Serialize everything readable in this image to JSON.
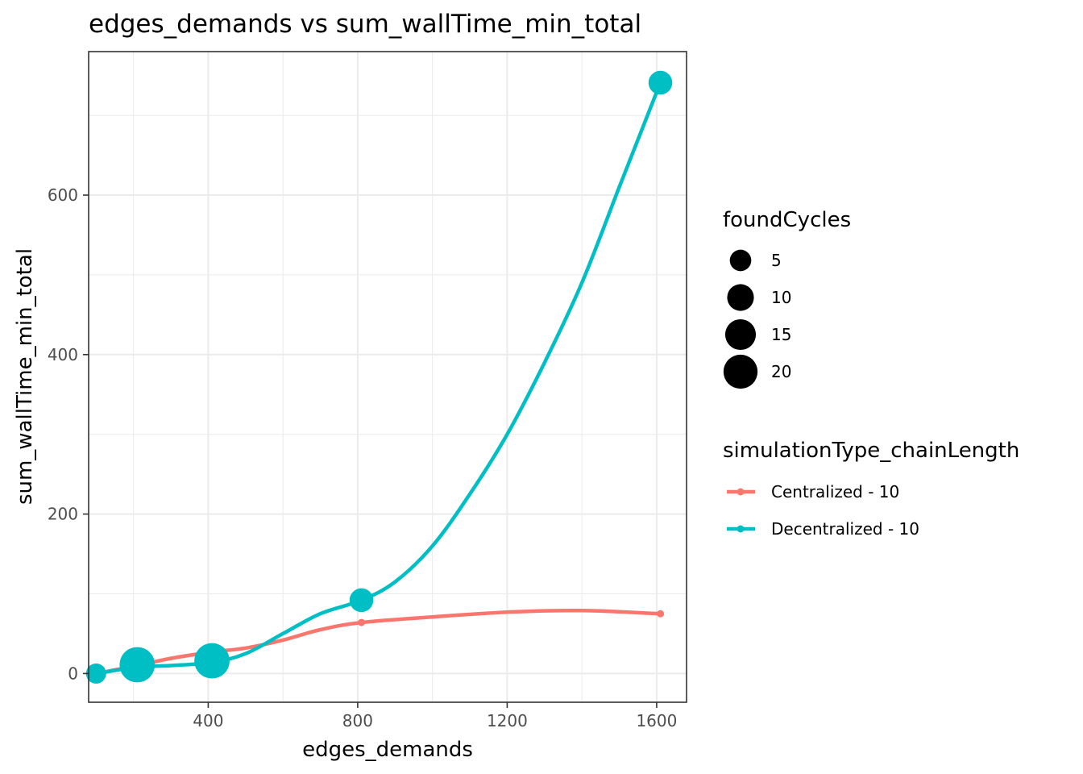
{
  "chart_data": {
    "type": "line",
    "title": "edges_demands  vs  sum_wallTime_min_total",
    "xlabel": "edges_demands",
    "ylabel": "sum_wallTime_min_total",
    "xlim": [
      80,
      1680
    ],
    "ylim": [
      -36,
      780
    ],
    "x_ticks": [
      400,
      800,
      1200,
      1600
    ],
    "x_minor_ticks": [
      200,
      600,
      1000,
      1400
    ],
    "y_ticks": [
      0,
      200,
      400,
      600
    ],
    "y_minor_ticks": [
      100,
      300,
      500,
      700
    ],
    "x_tick_labels": [
      "400",
      "800",
      "1200",
      "1600"
    ],
    "y_tick_labels": [
      "0",
      "200",
      "400",
      "600"
    ],
    "grid": true,
    "legend_placement": "right",
    "size_legend": {
      "title": "foundCycles",
      "entries": [
        {
          "label": "5",
          "value": 5
        },
        {
          "label": "10",
          "value": 10
        },
        {
          "label": "15",
          "value": 15
        },
        {
          "label": "20",
          "value": 20
        }
      ]
    },
    "color_legend": {
      "title": "simulationType_chainLength"
    },
    "series": [
      {
        "name": "Centralized - 10",
        "color": "#F8766D",
        "points": [
          {
            "x": 100,
            "y": 0,
            "foundCycles": 0
          },
          {
            "x": 210,
            "y": 12,
            "foundCycles": 0
          },
          {
            "x": 410,
            "y": 22,
            "foundCycles": 0
          },
          {
            "x": 810,
            "y": 64,
            "foundCycles": 0
          },
          {
            "x": 1610,
            "y": 75,
            "foundCycles": 0
          }
        ],
        "smooth": [
          {
            "x": 100,
            "y": 0
          },
          {
            "x": 210,
            "y": 10
          },
          {
            "x": 300,
            "y": 19
          },
          {
            "x": 410,
            "y": 27
          },
          {
            "x": 500,
            "y": 32
          },
          {
            "x": 600,
            "y": 42
          },
          {
            "x": 700,
            "y": 55
          },
          {
            "x": 810,
            "y": 64
          },
          {
            "x": 1000,
            "y": 71
          },
          {
            "x": 1200,
            "y": 77
          },
          {
            "x": 1400,
            "y": 79
          },
          {
            "x": 1610,
            "y": 75
          }
        ]
      },
      {
        "name": "Decentralized - 10",
        "color": "#00BFC4",
        "points": [
          {
            "x": 100,
            "y": 0,
            "foundCycles": 4
          },
          {
            "x": 210,
            "y": 11,
            "foundCycles": 22
          },
          {
            "x": 410,
            "y": 16,
            "foundCycles": 22
          },
          {
            "x": 810,
            "y": 92,
            "foundCycles": 7
          },
          {
            "x": 1610,
            "y": 741,
            "foundCycles": 7
          }
        ],
        "smooth": [
          {
            "x": 100,
            "y": 0
          },
          {
            "x": 210,
            "y": 8
          },
          {
            "x": 300,
            "y": 10
          },
          {
            "x": 410,
            "y": 14
          },
          {
            "x": 500,
            "y": 25
          },
          {
            "x": 600,
            "y": 50
          },
          {
            "x": 700,
            "y": 75
          },
          {
            "x": 810,
            "y": 92
          },
          {
            "x": 900,
            "y": 115
          },
          {
            "x": 1000,
            "y": 160
          },
          {
            "x": 1100,
            "y": 225
          },
          {
            "x": 1200,
            "y": 300
          },
          {
            "x": 1300,
            "y": 390
          },
          {
            "x": 1400,
            "y": 490
          },
          {
            "x": 1500,
            "y": 610
          },
          {
            "x": 1610,
            "y": 741
          }
        ]
      }
    ]
  }
}
